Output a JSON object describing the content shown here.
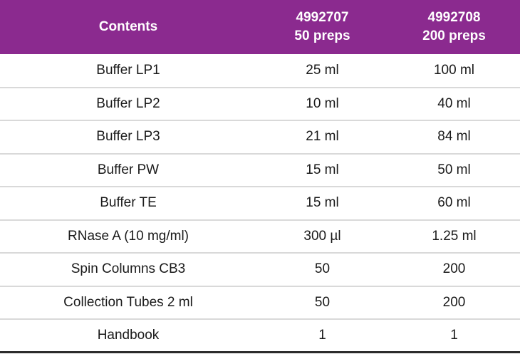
{
  "colors": {
    "header_bg": "#8b2a8f",
    "header_text": "#ffffff",
    "row_divider": "#d9d9d9",
    "bottom_rule": "#2b2b2b"
  },
  "table": {
    "header": {
      "col1": "Contents",
      "col2_line1": "4992707",
      "col2_line2": "50 preps",
      "col3_line1": "4992708",
      "col3_line2": "200 preps"
    },
    "rows": [
      {
        "content": "Buffer LP1",
        "preps50": "25 ml",
        "preps200": "100 ml"
      },
      {
        "content": "Buffer LP2",
        "preps50": "10 ml",
        "preps200": "40 ml"
      },
      {
        "content": "Buffer LP3",
        "preps50": "21 ml",
        "preps200": "84 ml"
      },
      {
        "content": "Buffer PW",
        "preps50": "15 ml",
        "preps200": "50 ml"
      },
      {
        "content": "Buffer TE",
        "preps50": "15 ml",
        "preps200": "60 ml"
      },
      {
        "content": "RNase A (10 mg/ml)",
        "preps50": "300 µl",
        "preps200": "1.25 ml"
      },
      {
        "content": "Spin Columns CB3",
        "preps50": "50",
        "preps200": "200"
      },
      {
        "content": "Collection Tubes 2 ml",
        "preps50": "50",
        "preps200": "200"
      },
      {
        "content": "Handbook",
        "preps50": "1",
        "preps200": "1"
      }
    ]
  }
}
